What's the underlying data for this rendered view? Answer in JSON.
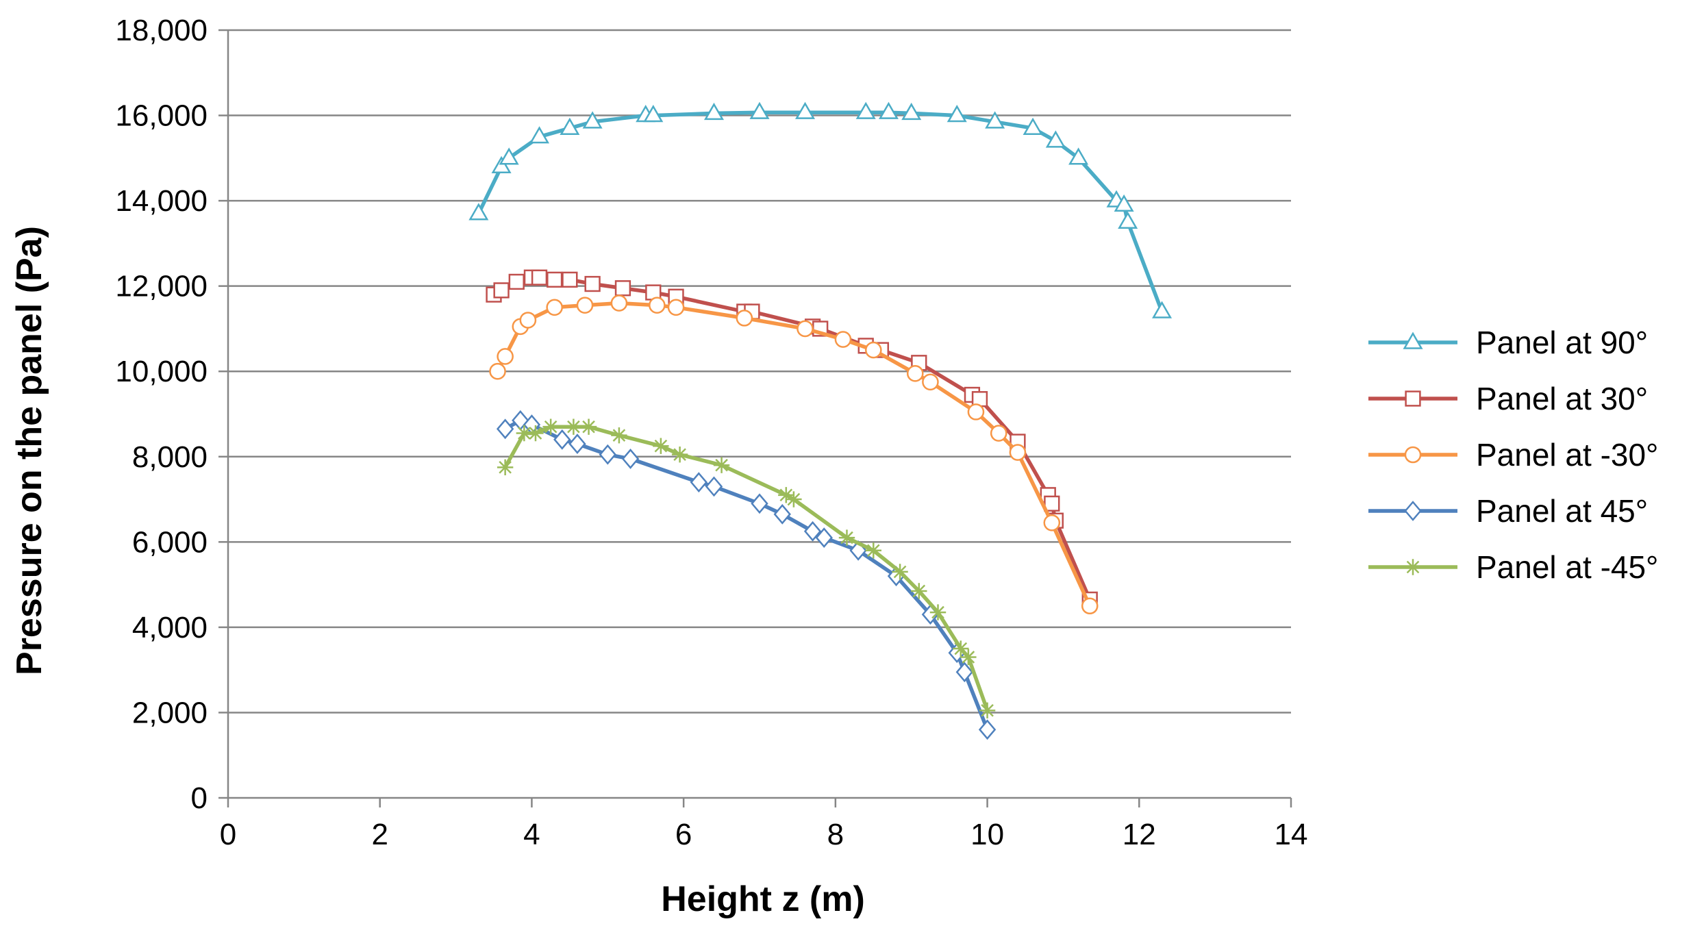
{
  "chart_data": {
    "type": "line",
    "title": "",
    "xlabel": "Height z (m)",
    "ylabel": "Pressure on the panel (Pa)",
    "xlim": [
      0,
      14
    ],
    "ylim": [
      0,
      18000
    ],
    "x_ticks": [
      "0",
      "2",
      "4",
      "6",
      "8",
      "10",
      "12",
      "14"
    ],
    "y_ticks": [
      "0",
      "2,000",
      "4,000",
      "6,000",
      "8,000",
      "10,000",
      "12,000",
      "14,000",
      "16,000",
      "18,000"
    ],
    "grid": "horizontal",
    "legend_position": "right",
    "series": [
      {
        "name": "Panel at 90°",
        "color": "#4BACC6",
        "marker": "triangle",
        "points": [
          [
            3.3,
            13700
          ],
          [
            3.6,
            14800
          ],
          [
            3.7,
            15000
          ],
          [
            4.1,
            15500
          ],
          [
            4.5,
            15700
          ],
          [
            4.8,
            15850
          ],
          [
            5.5,
            16000
          ],
          [
            5.6,
            16000
          ],
          [
            6.4,
            16050
          ],
          [
            7.0,
            16070
          ],
          [
            7.6,
            16070
          ],
          [
            8.4,
            16070
          ],
          [
            8.7,
            16070
          ],
          [
            9.0,
            16050
          ],
          [
            9.6,
            16000
          ],
          [
            10.1,
            15850
          ],
          [
            10.6,
            15700
          ],
          [
            10.9,
            15400
          ],
          [
            11.2,
            15000
          ],
          [
            11.7,
            14000
          ],
          [
            11.8,
            13900
          ],
          [
            11.85,
            13500
          ],
          [
            12.3,
            11400
          ]
        ]
      },
      {
        "name": "Panel at 30°",
        "color": "#C0504D",
        "marker": "square",
        "points": [
          [
            3.5,
            11800
          ],
          [
            3.6,
            11900
          ],
          [
            3.8,
            12100
          ],
          [
            4.0,
            12200
          ],
          [
            4.1,
            12200
          ],
          [
            4.3,
            12150
          ],
          [
            4.5,
            12150
          ],
          [
            4.8,
            12050
          ],
          [
            5.2,
            11950
          ],
          [
            5.6,
            11850
          ],
          [
            5.9,
            11750
          ],
          [
            6.8,
            11400
          ],
          [
            6.9,
            11400
          ],
          [
            7.7,
            11050
          ],
          [
            7.8,
            11000
          ],
          [
            8.4,
            10600
          ],
          [
            8.6,
            10500
          ],
          [
            9.1,
            10200
          ],
          [
            9.8,
            9450
          ],
          [
            9.9,
            9350
          ],
          [
            10.4,
            8350
          ],
          [
            10.8,
            7100
          ],
          [
            10.85,
            6900
          ],
          [
            10.9,
            6500
          ],
          [
            11.35,
            4650
          ]
        ]
      },
      {
        "name": "Panel at -30°",
        "color": "#F79646",
        "marker": "circle",
        "points": [
          [
            3.55,
            10000
          ],
          [
            3.65,
            10350
          ],
          [
            3.85,
            11050
          ],
          [
            3.95,
            11200
          ],
          [
            4.3,
            11500
          ],
          [
            4.7,
            11550
          ],
          [
            5.15,
            11600
          ],
          [
            5.65,
            11550
          ],
          [
            5.9,
            11500
          ],
          [
            6.8,
            11250
          ],
          [
            7.6,
            11000
          ],
          [
            8.1,
            10750
          ],
          [
            8.5,
            10500
          ],
          [
            9.05,
            9950
          ],
          [
            9.25,
            9750
          ],
          [
            9.85,
            9050
          ],
          [
            10.15,
            8550
          ],
          [
            10.4,
            8100
          ],
          [
            10.85,
            6450
          ],
          [
            11.35,
            4500
          ]
        ]
      },
      {
        "name": "Panel at 45°",
        "color": "#4F81BD",
        "marker": "diamond",
        "points": [
          [
            3.65,
            8650
          ],
          [
            3.85,
            8850
          ],
          [
            4.0,
            8750
          ],
          [
            4.4,
            8400
          ],
          [
            4.6,
            8300
          ],
          [
            5.0,
            8050
          ],
          [
            5.3,
            7950
          ],
          [
            6.2,
            7400
          ],
          [
            6.4,
            7300
          ],
          [
            7.0,
            6900
          ],
          [
            7.3,
            6650
          ],
          [
            7.7,
            6250
          ],
          [
            7.85,
            6100
          ],
          [
            8.3,
            5800
          ],
          [
            8.8,
            5200
          ],
          [
            9.25,
            4300
          ],
          [
            9.6,
            3400
          ],
          [
            9.7,
            2950
          ],
          [
            10.0,
            1600
          ]
        ]
      },
      {
        "name": "Panel at -45°",
        "color": "#9BBB59",
        "marker": "star",
        "points": [
          [
            3.65,
            7750
          ],
          [
            3.9,
            8550
          ],
          [
            4.05,
            8550
          ],
          [
            4.25,
            8700
          ],
          [
            4.55,
            8700
          ],
          [
            4.75,
            8700
          ],
          [
            5.15,
            8500
          ],
          [
            5.7,
            8250
          ],
          [
            5.95,
            8050
          ],
          [
            6.5,
            7800
          ],
          [
            7.35,
            7100
          ],
          [
            7.45,
            7000
          ],
          [
            8.15,
            6100
          ],
          [
            8.5,
            5800
          ],
          [
            8.85,
            5300
          ],
          [
            9.1,
            4850
          ],
          [
            9.35,
            4350
          ],
          [
            9.65,
            3500
          ],
          [
            9.75,
            3300
          ],
          [
            10.0,
            2050
          ]
        ]
      }
    ]
  }
}
